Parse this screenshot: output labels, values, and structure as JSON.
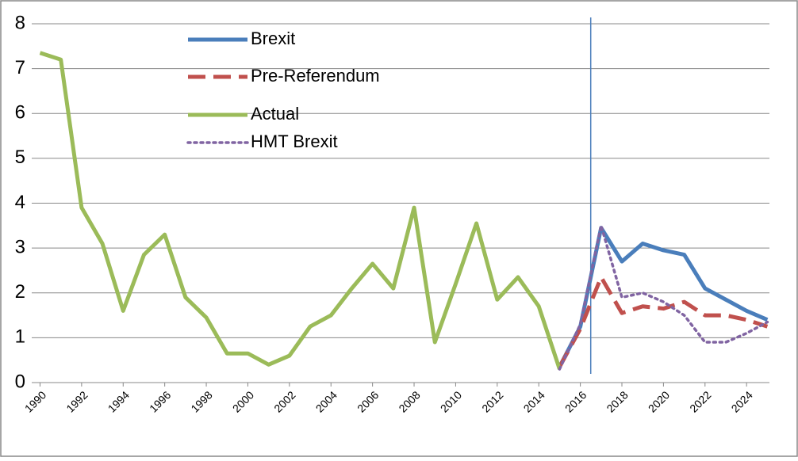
{
  "chart_data": {
    "type": "line",
    "x": [
      1990,
      1991,
      1992,
      1993,
      1994,
      1995,
      1996,
      1997,
      1998,
      1999,
      2000,
      2001,
      2002,
      2003,
      2004,
      2005,
      2006,
      2007,
      2008,
      2009,
      2010,
      2011,
      2012,
      2013,
      2014,
      2015,
      2016,
      2017,
      2018,
      2019,
      2020,
      2021,
      2022,
      2023,
      2024,
      2025
    ],
    "xlim": [
      1989.6,
      2025.1
    ],
    "xticks": [
      1990,
      1992,
      1994,
      1996,
      1998,
      2000,
      2002,
      2004,
      2006,
      2008,
      2010,
      2012,
      2014,
      2016,
      2018,
      2020,
      2022,
      2024
    ],
    "ylim": [
      0,
      8
    ],
    "yticks": [
      0,
      1,
      2,
      3,
      4,
      5,
      6,
      7,
      8
    ],
    "grid": true,
    "vline_x": 2016.5,
    "vline_color": "#4a7ebb",
    "legend": "upper-left",
    "series": [
      {
        "name": "Brexit",
        "color": "#4a7ebb",
        "style": "solid",
        "values": [
          null,
          null,
          null,
          null,
          null,
          null,
          null,
          null,
          null,
          null,
          null,
          null,
          null,
          null,
          null,
          null,
          null,
          null,
          null,
          null,
          null,
          null,
          null,
          null,
          null,
          0.35,
          1.25,
          3.45,
          2.7,
          3.1,
          2.95,
          2.85,
          2.1,
          1.85,
          1.6,
          1.4
        ]
      },
      {
        "name": "Pre-Referendum",
        "color": "#c0504d",
        "style": "dashed",
        "values": [
          null,
          null,
          null,
          null,
          null,
          null,
          null,
          null,
          null,
          null,
          null,
          null,
          null,
          null,
          null,
          null,
          null,
          null,
          null,
          null,
          null,
          null,
          null,
          null,
          null,
          0.35,
          1.2,
          2.35,
          1.55,
          1.7,
          1.65,
          1.8,
          1.5,
          1.5,
          1.4,
          1.25
        ]
      },
      {
        "name": "Actual",
        "color": "#9bbb59",
        "style": "solid",
        "values": [
          7.35,
          7.2,
          3.9,
          3.1,
          1.6,
          2.85,
          3.3,
          1.9,
          1.45,
          0.65,
          0.65,
          0.4,
          0.6,
          1.25,
          1.5,
          2.1,
          2.65,
          2.1,
          3.9,
          0.9,
          2.2,
          3.55,
          1.85,
          2.35,
          1.7,
          0.3,
          null,
          null,
          null,
          null,
          null,
          null,
          null,
          null,
          null,
          null
        ]
      },
      {
        "name": "HMT Brexit",
        "color": "#8064a2",
        "style": "dotted",
        "values": [
          null,
          null,
          null,
          null,
          null,
          null,
          null,
          null,
          null,
          null,
          null,
          null,
          null,
          null,
          null,
          null,
          null,
          null,
          null,
          null,
          null,
          null,
          null,
          null,
          null,
          0.3,
          1.3,
          3.5,
          1.9,
          2.0,
          1.8,
          1.5,
          0.9,
          0.9,
          1.1,
          1.35
        ]
      }
    ]
  }
}
